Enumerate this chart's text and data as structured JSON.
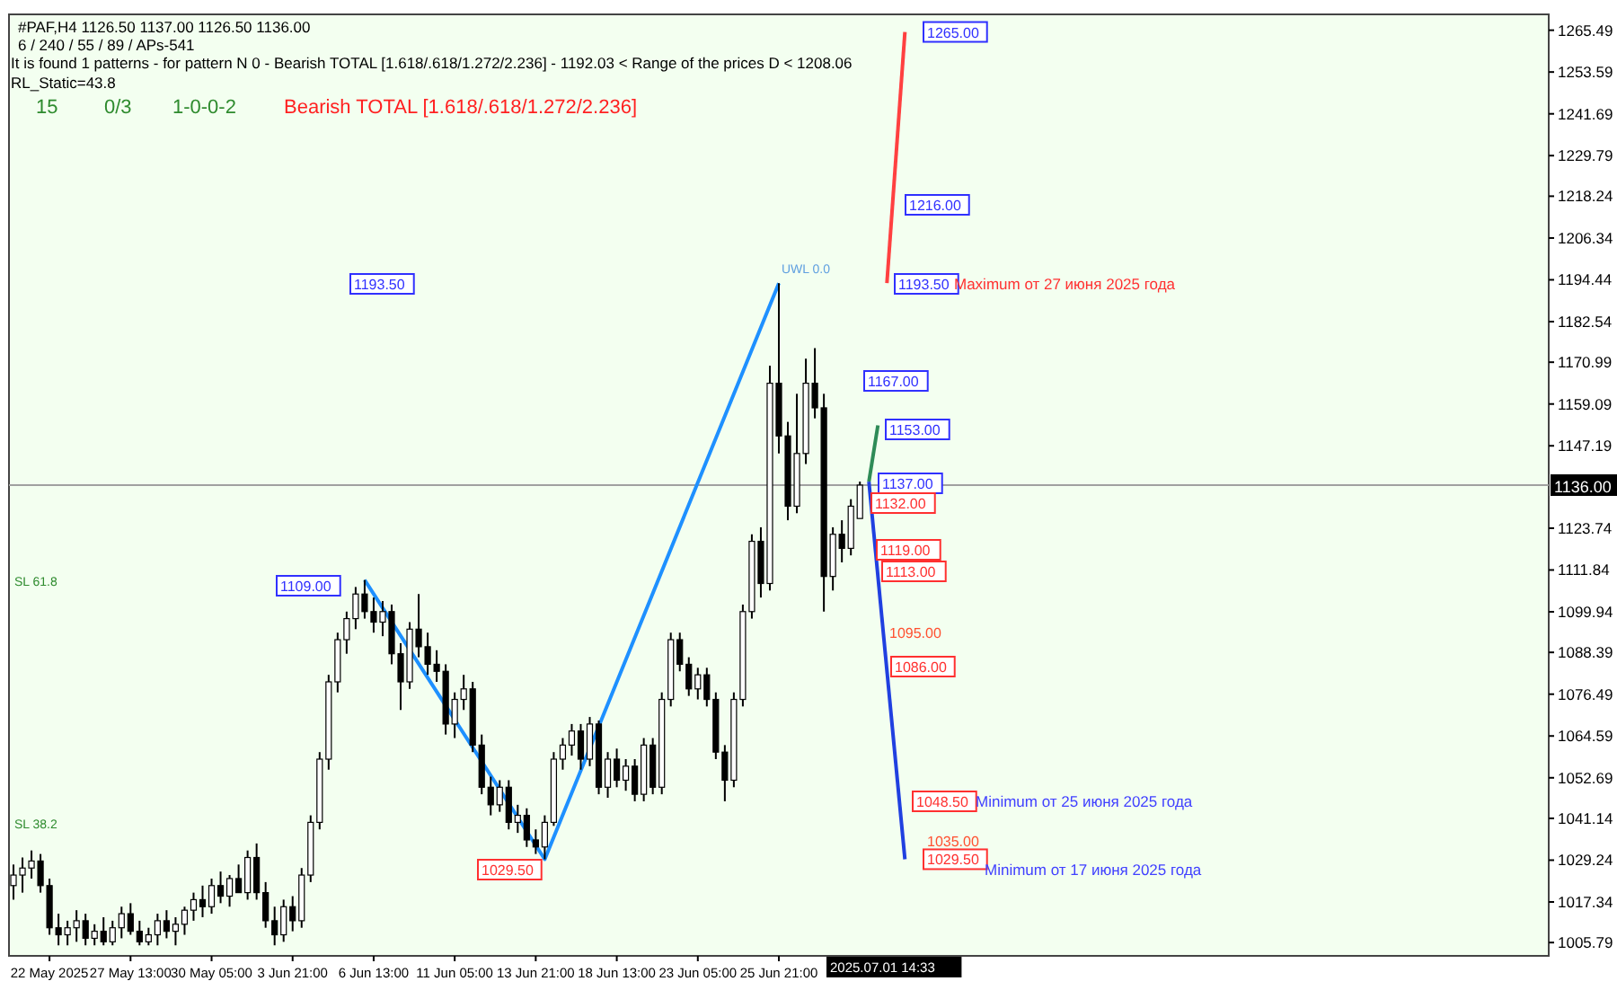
{
  "chart_data": {
    "type": "candlestick",
    "title": "#PAF,H4  1126.50 1137.00 1126.50 1136.00",
    "subtitle": "6 / 240 / 55 / 89 / APs-541",
    "categories": [
      null,
      null,
      null,
      null,
      "22 May 2025",
      null,
      null,
      null,
      null,
      null,
      null,
      null,
      null,
      "27 May 13:00",
      null,
      null,
      null,
      null,
      null,
      null,
      null,
      null,
      "30 May 05:00",
      null,
      null,
      null,
      null,
      null,
      null,
      null,
      null,
      "3 Jun 21:00",
      null,
      null,
      null,
      null,
      null,
      null,
      null,
      null,
      "6 Jun 13:00",
      null,
      null,
      null,
      null,
      null,
      null,
      null,
      null,
      "11 Jun 05:00",
      null,
      null,
      null,
      null,
      null,
      null,
      null,
      null,
      "13 Jun 21:00",
      null,
      null,
      null,
      null,
      null,
      null,
      null,
      null,
      "18 Jun 13:00",
      null,
      null,
      null,
      null,
      null,
      null,
      null,
      null,
      "23 Jun 05:00",
      null,
      null,
      null,
      null,
      null,
      null,
      null,
      null,
      "25 Jun 21:00",
      null,
      null,
      null,
      null,
      null,
      null,
      null,
      null,
      null,
      null,
      null,
      null,
      null,
      null,
      null,
      null,
      null,
      null,
      null,
      null,
      null,
      null,
      null,
      null,
      null,
      null,
      null,
      null,
      null,
      null,
      null,
      null,
      null,
      null,
      null,
      null,
      null,
      null,
      null,
      null,
      null,
      null,
      null,
      null,
      null,
      null,
      null,
      null,
      null,
      null,
      null,
      null,
      null,
      null,
      null,
      null,
      null,
      null,
      null,
      null,
      null,
      null,
      null,
      null,
      null,
      null,
      null,
      null,
      null,
      null,
      null,
      null,
      null,
      null,
      null,
      null,
      null,
      null,
      null,
      null,
      null,
      null,
      null,
      null,
      null
    ],
    "ohlc": [
      [
        1022,
        1028,
        1018,
        1025
      ],
      [
        1025,
        1030,
        1020,
        1027
      ],
      [
        1027,
        1032,
        1024,
        1029
      ],
      [
        1029,
        1031,
        1020,
        1022
      ],
      [
        1022,
        1024,
        1008,
        1010
      ],
      [
        1010,
        1014,
        1005,
        1008
      ],
      [
        1008,
        1012,
        1005,
        1010
      ],
      [
        1010,
        1015,
        1006,
        1012
      ],
      [
        1012,
        1014,
        1005,
        1007
      ],
      [
        1007,
        1011,
        1005,
        1009
      ],
      [
        1009,
        1013,
        1005,
        1006
      ],
      [
        1006,
        1012,
        1005,
        1010
      ],
      [
        1010,
        1016,
        1007,
        1014
      ],
      [
        1014,
        1017,
        1008,
        1009
      ],
      [
        1009,
        1012,
        1005,
        1006
      ],
      [
        1006,
        1010,
        1005,
        1008
      ],
      [
        1008,
        1014,
        1005,
        1012
      ],
      [
        1012,
        1015,
        1007,
        1009
      ],
      [
        1009,
        1013,
        1005,
        1011
      ],
      [
        1011,
        1016,
        1008,
        1015
      ],
      [
        1015,
        1020,
        1012,
        1018
      ],
      [
        1018,
        1022,
        1013,
        1016
      ],
      [
        1016,
        1024,
        1014,
        1022
      ],
      [
        1022,
        1026,
        1017,
        1019
      ],
      [
        1019,
        1025,
        1016,
        1024
      ],
      [
        1024,
        1028,
        1020,
        1020
      ],
      [
        1020,
        1032,
        1018,
        1030
      ],
      [
        1030,
        1034,
        1018,
        1020
      ],
      [
        1020,
        1023,
        1010,
        1012
      ],
      [
        1012,
        1016,
        1005,
        1008
      ],
      [
        1008,
        1018,
        1006,
        1016
      ],
      [
        1016,
        1019,
        1009,
        1012
      ],
      [
        1012,
        1027,
        1010,
        1025
      ],
      [
        1025,
        1042,
        1023,
        1040
      ],
      [
        1040,
        1060,
        1038,
        1058
      ],
      [
        1058,
        1082,
        1055,
        1080
      ],
      [
        1080,
        1094,
        1077,
        1092
      ],
      [
        1092,
        1100,
        1088,
        1098
      ],
      [
        1098,
        1107,
        1095,
        1105
      ],
      [
        1105,
        1109,
        1098,
        1100
      ],
      [
        1100,
        1104,
        1094,
        1097
      ],
      [
        1097,
        1103,
        1093,
        1100
      ],
      [
        1100,
        1102,
        1085,
        1088
      ],
      [
        1088,
        1091,
        1072,
        1080
      ],
      [
        1080,
        1097,
        1078,
        1095
      ],
      [
        1095,
        1105,
        1087,
        1090
      ],
      [
        1090,
        1094,
        1082,
        1085
      ],
      [
        1085,
        1089,
        1080,
        1083
      ],
      [
        1083,
        1085,
        1065,
        1068
      ],
      [
        1068,
        1077,
        1064,
        1075
      ],
      [
        1075,
        1082,
        1072,
        1078
      ],
      [
        1078,
        1080,
        1060,
        1062
      ],
      [
        1062,
        1065,
        1048,
        1050
      ],
      [
        1050,
        1053,
        1042,
        1045
      ],
      [
        1045,
        1052,
        1043,
        1050
      ],
      [
        1050,
        1052,
        1038,
        1040
      ],
      [
        1040,
        1045,
        1037,
        1042
      ],
      [
        1042,
        1044,
        1033,
        1035
      ],
      [
        1035,
        1038,
        1031,
        1033
      ],
      [
        1033,
        1042,
        1029.5,
        1040
      ],
      [
        1040,
        1060,
        1039,
        1058
      ],
      [
        1058,
        1064,
        1055,
        1062
      ],
      [
        1062,
        1068,
        1059,
        1066
      ],
      [
        1066,
        1068,
        1055,
        1058
      ],
      [
        1058,
        1070,
        1056,
        1068
      ],
      [
        1068,
        1069,
        1048,
        1050
      ],
      [
        1050,
        1060,
        1047,
        1058
      ],
      [
        1058,
        1061,
        1050,
        1052
      ],
      [
        1052,
        1058,
        1049,
        1056
      ],
      [
        1056,
        1058,
        1046,
        1048
      ],
      [
        1048,
        1064,
        1046,
        1062
      ],
      [
        1062,
        1064,
        1048,
        1050
      ],
      [
        1050,
        1077,
        1048,
        1075
      ],
      [
        1075,
        1094,
        1073,
        1092
      ],
      [
        1092,
        1094,
        1083,
        1085
      ],
      [
        1085,
        1087,
        1076,
        1078
      ],
      [
        1078,
        1084,
        1075,
        1082
      ],
      [
        1082,
        1084,
        1073,
        1075
      ],
      [
        1075,
        1077,
        1058,
        1060
      ],
      [
        1060,
        1062,
        1046,
        1052
      ],
      [
        1052,
        1077,
        1050,
        1075
      ],
      [
        1075,
        1102,
        1073,
        1100
      ],
      [
        1100,
        1122,
        1098,
        1120
      ],
      [
        1120,
        1124,
        1104,
        1108
      ],
      [
        1108,
        1170,
        1106,
        1165
      ],
      [
        1165,
        1193.5,
        1145,
        1150
      ],
      [
        1150,
        1154,
        1126,
        1130
      ],
      [
        1130,
        1162,
        1128,
        1145
      ],
      [
        1145,
        1172,
        1142,
        1165
      ],
      [
        1165,
        1175,
        1155,
        1158
      ],
      [
        1158,
        1162,
        1100,
        1110
      ],
      [
        1110,
        1124,
        1106,
        1122
      ],
      [
        1122,
        1126,
        1114,
        1118
      ],
      [
        1118,
        1132,
        1116,
        1130
      ],
      [
        1126.5,
        1137,
        1126.5,
        1136
      ],
      null,
      null,
      null,
      null,
      null,
      null,
      null,
      null,
      null,
      null,
      null,
      null,
      null,
      null,
      null,
      null,
      null,
      null,
      null,
      null,
      null,
      null,
      null,
      null,
      null,
      null,
      null,
      null,
      null,
      null,
      null,
      null,
      null,
      null,
      null,
      null,
      null,
      null,
      null,
      null,
      null,
      null,
      null,
      null,
      null,
      null,
      null,
      null,
      null,
      null,
      null,
      null,
      null,
      null,
      null,
      null,
      null,
      null,
      null,
      null,
      null,
      null,
      null,
      null,
      null,
      null,
      null,
      null,
      null,
      null,
      null,
      null,
      null,
      null,
      null,
      null
    ],
    "series": [
      {
        "type": "line",
        "color": "#1e90ff",
        "values": [
          null,
          null,
          null,
          null,
          null,
          null,
          null,
          null,
          null,
          null,
          null,
          null,
          null,
          null,
          null,
          null,
          null,
          null,
          null,
          null,
          null,
          null,
          null,
          null,
          null,
          null,
          null,
          null,
          null,
          null,
          null,
          null,
          null,
          null,
          null,
          null,
          null,
          null,
          null,
          1109,
          null,
          null,
          null,
          null,
          null,
          null,
          null,
          null,
          null,
          null,
          null,
          null,
          null,
          null,
          null,
          null,
          null,
          null,
          null,
          1029.5,
          null,
          null,
          null,
          null,
          null,
          null,
          null,
          null,
          null,
          null,
          null,
          null,
          null,
          null,
          null,
          null,
          null,
          null,
          null,
          null,
          null,
          null,
          null,
          null,
          null,
          1193.5,
          null,
          null,
          null,
          null,
          null,
          null,
          null,
          null,
          null,
          null,
          null,
          null,
          null,
          null,
          null,
          null,
          null,
          null,
          null,
          null,
          null,
          null,
          null,
          null,
          null,
          null,
          null,
          null,
          null,
          null,
          null,
          null,
          null,
          null,
          null,
          null,
          null,
          null,
          null,
          null,
          null,
          null,
          null,
          null,
          null,
          null,
          null,
          null,
          null,
          null,
          null,
          null,
          null,
          null,
          null,
          null,
          null,
          null,
          null,
          null,
          null,
          null,
          null,
          null,
          null,
          null,
          null,
          null,
          null,
          null,
          null,
          null,
          null,
          null,
          null,
          null,
          null,
          null,
          null,
          null,
          null,
          null,
          null,
          null,
          null
        ]
      },
      {
        "type": "line",
        "color": "#2e8b57",
        "values": [
          null,
          null,
          null,
          null,
          null,
          null,
          null,
          null,
          null,
          null,
          null,
          null,
          null,
          null,
          null,
          null,
          null,
          null,
          null,
          null,
          null,
          null,
          null,
          null,
          null,
          null,
          null,
          null,
          null,
          null,
          null,
          null,
          null,
          null,
          null,
          null,
          null,
          null,
          null,
          null,
          null,
          null,
          null,
          null,
          null,
          null,
          null,
          null,
          null,
          null,
          null,
          null,
          null,
          null,
          null,
          null,
          null,
          null,
          null,
          null,
          null,
          null,
          null,
          null,
          null,
          null,
          null,
          null,
          null,
          null,
          null,
          null,
          null,
          null,
          null,
          null,
          null,
          null,
          null,
          null,
          null,
          null,
          null,
          null,
          null,
          null,
          null,
          null,
          null,
          null,
          null,
          null,
          null,
          null,
          null,
          1137,
          1153,
          null,
          null,
          null,
          null,
          null,
          null,
          null,
          null,
          null,
          null,
          null,
          null,
          null,
          null,
          null,
          null,
          null,
          null,
          null,
          null,
          null,
          null,
          null,
          null,
          null,
          null,
          null,
          null,
          null,
          null,
          null,
          null,
          null,
          null,
          null,
          null,
          null,
          null,
          null,
          null,
          null,
          null,
          null,
          null,
          null,
          null,
          null,
          null,
          null,
          null,
          null,
          null,
          null,
          null,
          null,
          null,
          null,
          null,
          null,
          null,
          null,
          null,
          null,
          null,
          null,
          null,
          null,
          null,
          null,
          null,
          null,
          null,
          null,
          null
        ]
      },
      {
        "type": "line",
        "color": "#ff4040",
        "values": [
          null,
          null,
          null,
          null,
          null,
          null,
          null,
          null,
          null,
          null,
          null,
          null,
          null,
          null,
          null,
          null,
          null,
          null,
          null,
          null,
          null,
          null,
          null,
          null,
          null,
          null,
          null,
          null,
          null,
          null,
          null,
          null,
          null,
          null,
          null,
          null,
          null,
          null,
          null,
          null,
          null,
          null,
          null,
          null,
          null,
          null,
          null,
          null,
          null,
          null,
          null,
          null,
          null,
          null,
          null,
          null,
          null,
          null,
          null,
          null,
          null,
          null,
          null,
          null,
          null,
          null,
          null,
          null,
          null,
          null,
          null,
          null,
          null,
          null,
          null,
          null,
          null,
          null,
          null,
          null,
          null,
          null,
          null,
          null,
          null,
          null,
          null,
          null,
          null,
          null,
          null,
          null,
          null,
          null,
          null,
          null,
          null,
          1193.5,
          null,
          1265,
          null,
          null,
          null,
          null,
          null,
          null,
          null,
          null,
          null,
          null,
          null,
          null,
          null,
          null,
          null,
          null,
          null,
          null,
          null,
          null,
          null,
          null,
          null,
          null,
          null,
          null,
          null,
          null,
          null,
          null,
          null,
          null,
          null,
          null,
          null,
          null,
          null,
          null,
          null,
          null,
          null,
          null,
          null,
          null,
          null,
          null,
          null,
          null,
          null,
          null,
          null,
          null,
          null,
          null,
          null,
          null,
          null,
          null,
          null,
          null,
          null,
          null,
          null,
          null,
          null,
          null,
          null,
          null,
          null,
          null,
          null
        ]
      },
      {
        "type": "line",
        "color": "#2040e0",
        "values": [
          null,
          null,
          null,
          null,
          null,
          null,
          null,
          null,
          null,
          null,
          null,
          null,
          null,
          null,
          null,
          null,
          null,
          null,
          null,
          null,
          null,
          null,
          null,
          null,
          null,
          null,
          null,
          null,
          null,
          null,
          null,
          null,
          null,
          null,
          null,
          null,
          null,
          null,
          null,
          null,
          null,
          null,
          null,
          null,
          null,
          null,
          null,
          null,
          null,
          null,
          null,
          null,
          null,
          null,
          null,
          null,
          null,
          null,
          null,
          null,
          null,
          null,
          null,
          null,
          null,
          null,
          null,
          null,
          null,
          null,
          null,
          null,
          null,
          null,
          null,
          null,
          null,
          null,
          null,
          null,
          null,
          null,
          null,
          null,
          null,
          null,
          null,
          null,
          null,
          null,
          null,
          null,
          null,
          null,
          null,
          1137,
          null,
          null,
          null,
          1029.5,
          null,
          null,
          null,
          null,
          null,
          null,
          null,
          null,
          null,
          null,
          null,
          null,
          null,
          null,
          null,
          null,
          null,
          null,
          null,
          null,
          null,
          null,
          null,
          null,
          null,
          null,
          null,
          null,
          null,
          null,
          null,
          null,
          null,
          null,
          null,
          null,
          null,
          null,
          null,
          null,
          null,
          null,
          null,
          null,
          null,
          null,
          null,
          null,
          null,
          null,
          null,
          null,
          null,
          null,
          null,
          null,
          null,
          null,
          null,
          null,
          null,
          null,
          null,
          null,
          null,
          null,
          null,
          null,
          null,
          null,
          null
        ]
      }
    ],
    "ylim": [
      1002,
      1270
    ],
    "yticks": [
      1265.49,
      1253.59,
      1241.69,
      1229.79,
      1218.24,
      1206.34,
      1194.44,
      1182.54,
      1170.99,
      1159.09,
      1147.19,
      1123.74,
      1111.84,
      1099.94,
      1088.39,
      1076.49,
      1064.59,
      1052.69,
      1041.14,
      1029.24,
      1017.34,
      1005.79
    ],
    "ref_lines": [
      {
        "axis": "y",
        "value": 1136,
        "label": "1136.00",
        "color": "#a0a0a0"
      }
    ],
    "annotations": [
      "It is found 1 patterns  -  for pattern N 0 - Bearish TOTAL [1.618/.618/1.272/2.236] - 1192.03 < Range of the prices D < 1208.06",
      "RL_Static=43.8",
      "15",
      "0/3",
      "1-0-0-2",
      "Bearish TOTAL [1.618/.618/1.272/2.236]",
      "2025.07.01 14:33",
      {
        "text": "1265.00",
        "y": 1265
      },
      "1216.00",
      "1193.50",
      "Maximum от 27 июня 2025 года",
      "1167.00",
      "1153.00",
      "1137.00",
      "1132.00",
      "1119.00",
      "1113.00",
      "1095.00",
      "1086.00",
      "1048.50",
      "Minimum от 25 июня 2025 года",
      "1035.00",
      {
        "text": "1029.50",
        "y": 1029.5
      },
      "Minimum от 17 июня 2025 года",
      "1193.50",
      "1109.00",
      "1029.50",
      "SL 61.8",
      "SL 38.2",
      "UWL 0.0"
    ]
  }
}
